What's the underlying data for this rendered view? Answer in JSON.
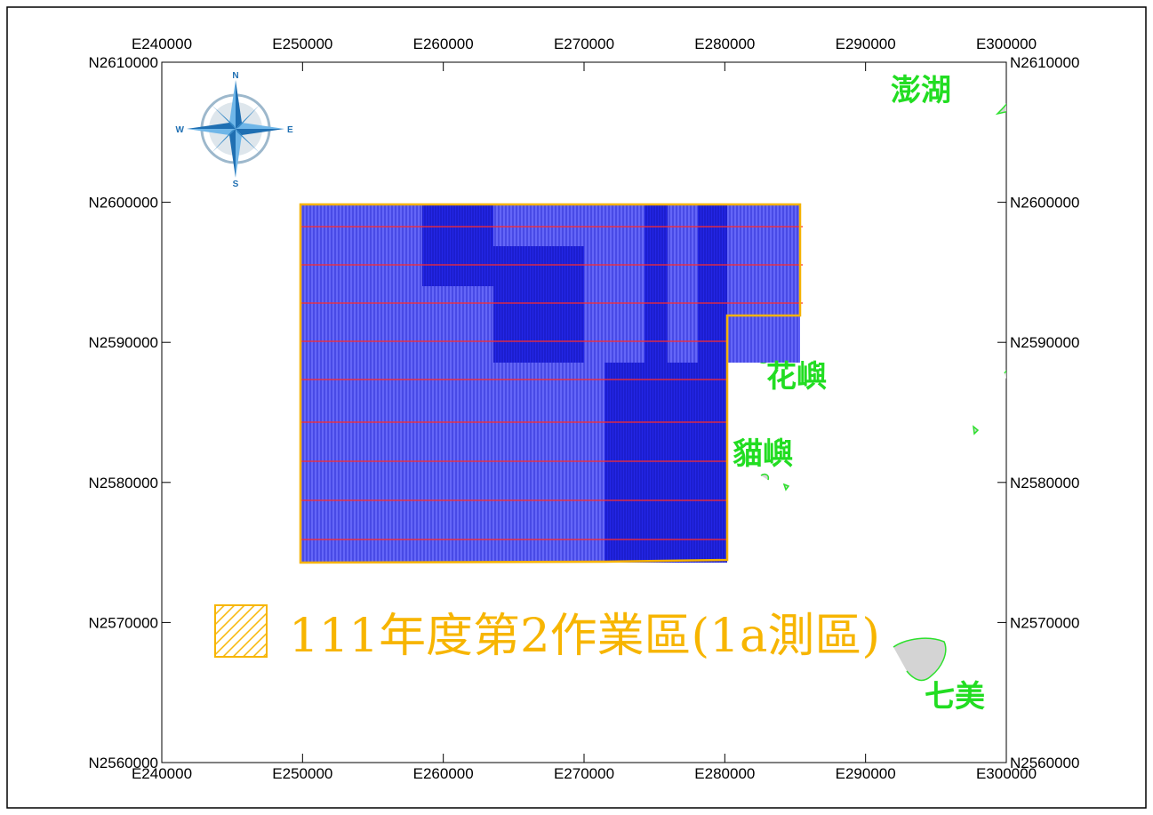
{
  "map": {
    "colors": {
      "background": "#ffffff",
      "frame": "#000000",
      "survey_fill": "#5a5cf7",
      "survey_dense_fill": "#1f22e8",
      "survey_lines": "#2a2ad0",
      "track_lines": "#ff2a2a",
      "boundary": "#f5b200",
      "island_fill": "#d4d4d4",
      "island_outline": "#2de02d",
      "place_label": "#22dd22",
      "legend_text": "#f7b500"
    },
    "x_axis": {
      "ticks": [
        {
          "value": 240000,
          "label": "E240000"
        },
        {
          "value": 250000,
          "label": "E250000"
        },
        {
          "value": 260000,
          "label": "E260000"
        },
        {
          "value": 270000,
          "label": "E270000"
        },
        {
          "value": 280000,
          "label": "E280000"
        },
        {
          "value": 290000,
          "label": "E290000"
        },
        {
          "value": 300000,
          "label": "E300000"
        }
      ]
    },
    "y_axis": {
      "ticks": [
        {
          "value": 2610000,
          "label": "N2610000"
        },
        {
          "value": 2600000,
          "label": "N2600000"
        },
        {
          "value": 2590000,
          "label": "N2590000"
        },
        {
          "value": 2580000,
          "label": "N2580000"
        },
        {
          "value": 2570000,
          "label": "N2570000"
        },
        {
          "value": 2560000,
          "label": "N2560000"
        }
      ]
    },
    "places": [
      {
        "id": "penghu",
        "label": "澎湖"
      },
      {
        "id": "huayu",
        "label": "花嶼"
      },
      {
        "id": "maoyu",
        "label": "貓嶼"
      },
      {
        "id": "qimei",
        "label": "七美"
      }
    ],
    "compass": {
      "north": "N",
      "south": "S",
      "east": "E",
      "west": "W"
    },
    "legend": {
      "label": "111年度第2作業區(1a測區)",
      "symbol": "hatched-box-icon"
    }
  }
}
